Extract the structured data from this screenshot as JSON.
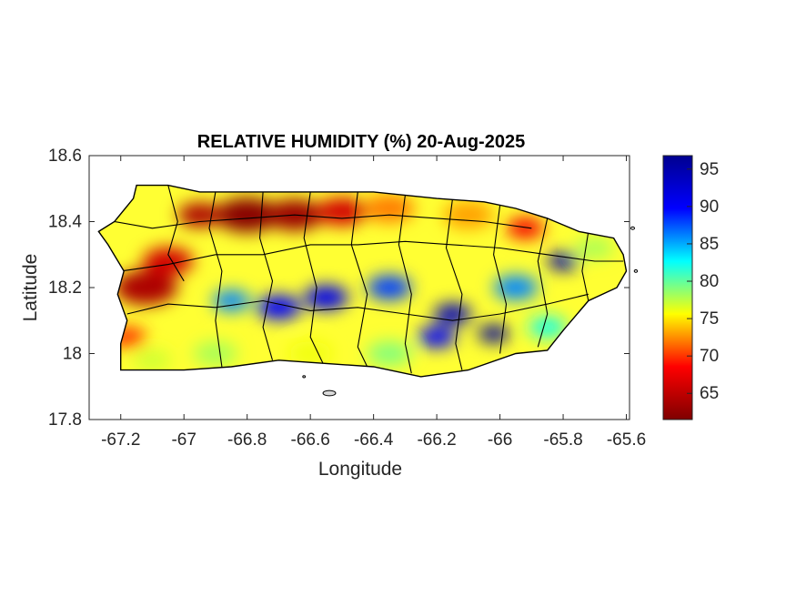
{
  "figure": {
    "title": "RELATIVE HUMIDITY (%) 20-Aug-2025",
    "xlabel": "Longitude",
    "ylabel": "Latitude"
  },
  "map": {
    "xlim": [
      -67.3,
      -65.59
    ],
    "ylim": [
      17.8,
      18.6
    ],
    "x_ticks": [
      {
        "value": -67.2,
        "label": "-67.2"
      },
      {
        "value": -67.0,
        "label": "-67"
      },
      {
        "value": -66.8,
        "label": "-66.8"
      },
      {
        "value": -66.6,
        "label": "-66.6"
      },
      {
        "value": -66.4,
        "label": "-66.4"
      },
      {
        "value": -66.2,
        "label": "-66.2"
      },
      {
        "value": -66.0,
        "label": "-66"
      },
      {
        "value": -65.8,
        "label": "-65.8"
      },
      {
        "value": -65.6,
        "label": "-65.6"
      }
    ],
    "y_ticks": [
      {
        "value": 18.6,
        "label": "18.6"
      },
      {
        "value": 18.4,
        "label": "18.4"
      },
      {
        "value": 18.2,
        "label": "18.2"
      },
      {
        "value": 18.0,
        "label": "18"
      },
      {
        "value": 17.8,
        "label": "17.8"
      }
    ],
    "island_outline": [
      [
        -67.27,
        18.37
      ],
      [
        -67.22,
        18.4
      ],
      [
        -67.16,
        18.47
      ],
      [
        -67.15,
        18.51
      ],
      [
        -67.05,
        18.51
      ],
      [
        -66.95,
        18.49
      ],
      [
        -66.8,
        18.49
      ],
      [
        -66.6,
        18.49
      ],
      [
        -66.4,
        18.49
      ],
      [
        -66.2,
        18.47
      ],
      [
        -66.05,
        18.46
      ],
      [
        -65.95,
        18.44
      ],
      [
        -65.85,
        18.41
      ],
      [
        -65.75,
        18.37
      ],
      [
        -65.64,
        18.35
      ],
      [
        -65.61,
        18.3
      ],
      [
        -65.6,
        18.25
      ],
      [
        -65.63,
        18.2
      ],
      [
        -65.72,
        18.16
      ],
      [
        -65.8,
        18.07
      ],
      [
        -65.85,
        18.01
      ],
      [
        -65.95,
        18.0
      ],
      [
        -66.1,
        17.95
      ],
      [
        -66.25,
        17.93
      ],
      [
        -66.4,
        17.96
      ],
      [
        -66.55,
        17.97
      ],
      [
        -66.7,
        17.98
      ],
      [
        -66.85,
        17.96
      ],
      [
        -67.0,
        17.95
      ],
      [
        -67.12,
        17.95
      ],
      [
        -67.2,
        17.95
      ],
      [
        -67.2,
        18.03
      ],
      [
        -67.18,
        18.1
      ],
      [
        -67.21,
        18.18
      ],
      [
        -67.19,
        18.25
      ],
      [
        -67.24,
        18.33
      ]
    ],
    "municipality_lines": [
      [
        [
          -67.05,
          18.51
        ],
        [
          -67.02,
          18.4
        ],
        [
          -67.05,
          18.3
        ],
        [
          -67.0,
          18.22
        ]
      ],
      [
        [
          -66.9,
          18.49
        ],
        [
          -66.92,
          18.38
        ],
        [
          -66.88,
          18.25
        ],
        [
          -66.9,
          18.1
        ],
        [
          -66.88,
          17.96
        ]
      ],
      [
        [
          -66.75,
          18.49
        ],
        [
          -66.76,
          18.35
        ],
        [
          -66.72,
          18.22
        ],
        [
          -66.75,
          18.08
        ],
        [
          -66.72,
          17.98
        ]
      ],
      [
        [
          -66.6,
          18.49
        ],
        [
          -66.62,
          18.35
        ],
        [
          -66.58,
          18.2
        ],
        [
          -66.6,
          18.05
        ],
        [
          -66.56,
          17.97
        ]
      ],
      [
        [
          -66.45,
          18.49
        ],
        [
          -66.47,
          18.33
        ],
        [
          -66.42,
          18.18
        ],
        [
          -66.45,
          18.02
        ],
        [
          -66.42,
          17.96
        ]
      ],
      [
        [
          -66.3,
          18.48
        ],
        [
          -66.32,
          18.33
        ],
        [
          -66.28,
          18.18
        ],
        [
          -66.3,
          18.03
        ],
        [
          -66.28,
          17.94
        ]
      ],
      [
        [
          -66.15,
          18.47
        ],
        [
          -66.17,
          18.32
        ],
        [
          -66.12,
          18.18
        ],
        [
          -66.14,
          18.03
        ],
        [
          -66.12,
          17.95
        ]
      ],
      [
        [
          -66.0,
          18.45
        ],
        [
          -66.02,
          18.3
        ],
        [
          -65.98,
          18.15
        ],
        [
          -66.0,
          18.0
        ]
      ],
      [
        [
          -65.85,
          18.41
        ],
        [
          -65.88,
          18.28
        ],
        [
          -65.85,
          18.12
        ],
        [
          -65.88,
          18.02
        ]
      ],
      [
        [
          -65.72,
          18.37
        ],
        [
          -65.74,
          18.25
        ],
        [
          -65.72,
          18.16
        ]
      ],
      [
        [
          -67.2,
          18.25
        ],
        [
          -67.05,
          18.27
        ],
        [
          -66.9,
          18.3
        ],
        [
          -66.75,
          18.3
        ],
        [
          -66.6,
          18.33
        ],
        [
          -66.45,
          18.33
        ],
        [
          -66.3,
          18.34
        ],
        [
          -66.15,
          18.33
        ],
        [
          -66.0,
          18.32
        ],
        [
          -65.85,
          18.3
        ],
        [
          -65.7,
          18.28
        ],
        [
          -65.61,
          18.28
        ]
      ],
      [
        [
          -67.18,
          18.12
        ],
        [
          -67.05,
          18.15
        ],
        [
          -66.9,
          18.14
        ],
        [
          -66.75,
          18.16
        ],
        [
          -66.6,
          18.13
        ],
        [
          -66.45,
          18.14
        ],
        [
          -66.3,
          18.12
        ],
        [
          -66.15,
          18.1
        ],
        [
          -66.0,
          18.12
        ],
        [
          -65.85,
          18.15
        ],
        [
          -65.72,
          18.18
        ]
      ],
      [
        [
          -67.22,
          18.4
        ],
        [
          -67.1,
          18.38
        ],
        [
          -66.95,
          18.4
        ],
        [
          -66.8,
          18.41
        ],
        [
          -66.65,
          18.42
        ],
        [
          -66.5,
          18.41
        ],
        [
          -66.35,
          18.42
        ],
        [
          -66.2,
          18.41
        ],
        [
          -66.05,
          18.4
        ],
        [
          -65.9,
          18.38
        ]
      ]
    ],
    "islets": [
      {
        "lon": -66.54,
        "lat": 17.88,
        "rx": 0.02,
        "ry": 0.008
      },
      {
        "lon": -65.58,
        "lat": 18.38,
        "rx": 0.006,
        "ry": 0.004
      },
      {
        "lon": -65.57,
        "lat": 18.25,
        "rx": 0.005,
        "ry": 0.004
      },
      {
        "lon": -66.62,
        "lat": 17.93,
        "rx": 0.004,
        "ry": 0.003
      }
    ],
    "humidity_field": [
      {
        "lon": -66.8,
        "lat": 18.42,
        "rh": 62,
        "r": 0.1
      },
      {
        "lon": -66.65,
        "lat": 18.42,
        "rh": 63,
        "r": 0.09
      },
      {
        "lon": -66.5,
        "lat": 18.43,
        "rh": 66,
        "r": 0.08
      },
      {
        "lon": -66.95,
        "lat": 18.42,
        "rh": 64,
        "r": 0.07
      },
      {
        "lon": -67.12,
        "lat": 18.2,
        "rh": 64,
        "r": 0.1
      },
      {
        "lon": -67.05,
        "lat": 18.28,
        "rh": 66,
        "r": 0.08
      },
      {
        "lon": -67.18,
        "lat": 18.05,
        "rh": 70,
        "r": 0.06
      },
      {
        "lon": -66.35,
        "lat": 18.44,
        "rh": 72,
        "r": 0.08
      },
      {
        "lon": -66.1,
        "lat": 18.42,
        "rh": 73,
        "r": 0.08
      },
      {
        "lon": -65.92,
        "lat": 18.38,
        "rh": 68,
        "r": 0.06
      },
      {
        "lon": -65.7,
        "lat": 18.32,
        "rh": 78,
        "r": 0.06
      },
      {
        "lon": -66.7,
        "lat": 18.14,
        "rh": 90,
        "r": 0.07
      },
      {
        "lon": -66.55,
        "lat": 18.17,
        "rh": 91,
        "r": 0.07
      },
      {
        "lon": -66.35,
        "lat": 18.2,
        "rh": 88,
        "r": 0.07
      },
      {
        "lon": -66.15,
        "lat": 18.12,
        "rh": 94,
        "r": 0.06
      },
      {
        "lon": -66.02,
        "lat": 18.06,
        "rh": 96,
        "r": 0.05
      },
      {
        "lon": -66.2,
        "lat": 18.05,
        "rh": 90,
        "r": 0.06
      },
      {
        "lon": -65.8,
        "lat": 18.28,
        "rh": 95,
        "r": 0.05
      },
      {
        "lon": -65.95,
        "lat": 18.2,
        "rh": 86,
        "r": 0.07
      },
      {
        "lon": -66.85,
        "lat": 18.16,
        "rh": 86,
        "r": 0.06
      },
      {
        "lon": -66.9,
        "lat": 18.0,
        "rh": 78,
        "r": 0.07
      },
      {
        "lon": -66.6,
        "lat": 18.0,
        "rh": 76,
        "r": 0.07
      },
      {
        "lon": -66.35,
        "lat": 18.0,
        "rh": 79,
        "r": 0.07
      },
      {
        "lon": -65.85,
        "lat": 18.08,
        "rh": 82,
        "r": 0.06
      },
      {
        "lon": -67.1,
        "lat": 17.98,
        "rh": 77,
        "r": 0.06
      }
    ]
  },
  "colorbar": {
    "limits": [
      61.5,
      96.8
    ],
    "ticks": [
      {
        "value": 65,
        "label": "65"
      },
      {
        "value": 70,
        "label": "70"
      },
      {
        "value": 75,
        "label": "75"
      },
      {
        "value": 80,
        "label": "80"
      },
      {
        "value": 85,
        "label": "85"
      },
      {
        "value": 90,
        "label": "90"
      },
      {
        "value": 95,
        "label": "95"
      }
    ],
    "colormap": [
      "#7f0000",
      "#ff0000",
      "#ffff00",
      "#00ffff",
      "#0000ff",
      "#00008f"
    ]
  }
}
